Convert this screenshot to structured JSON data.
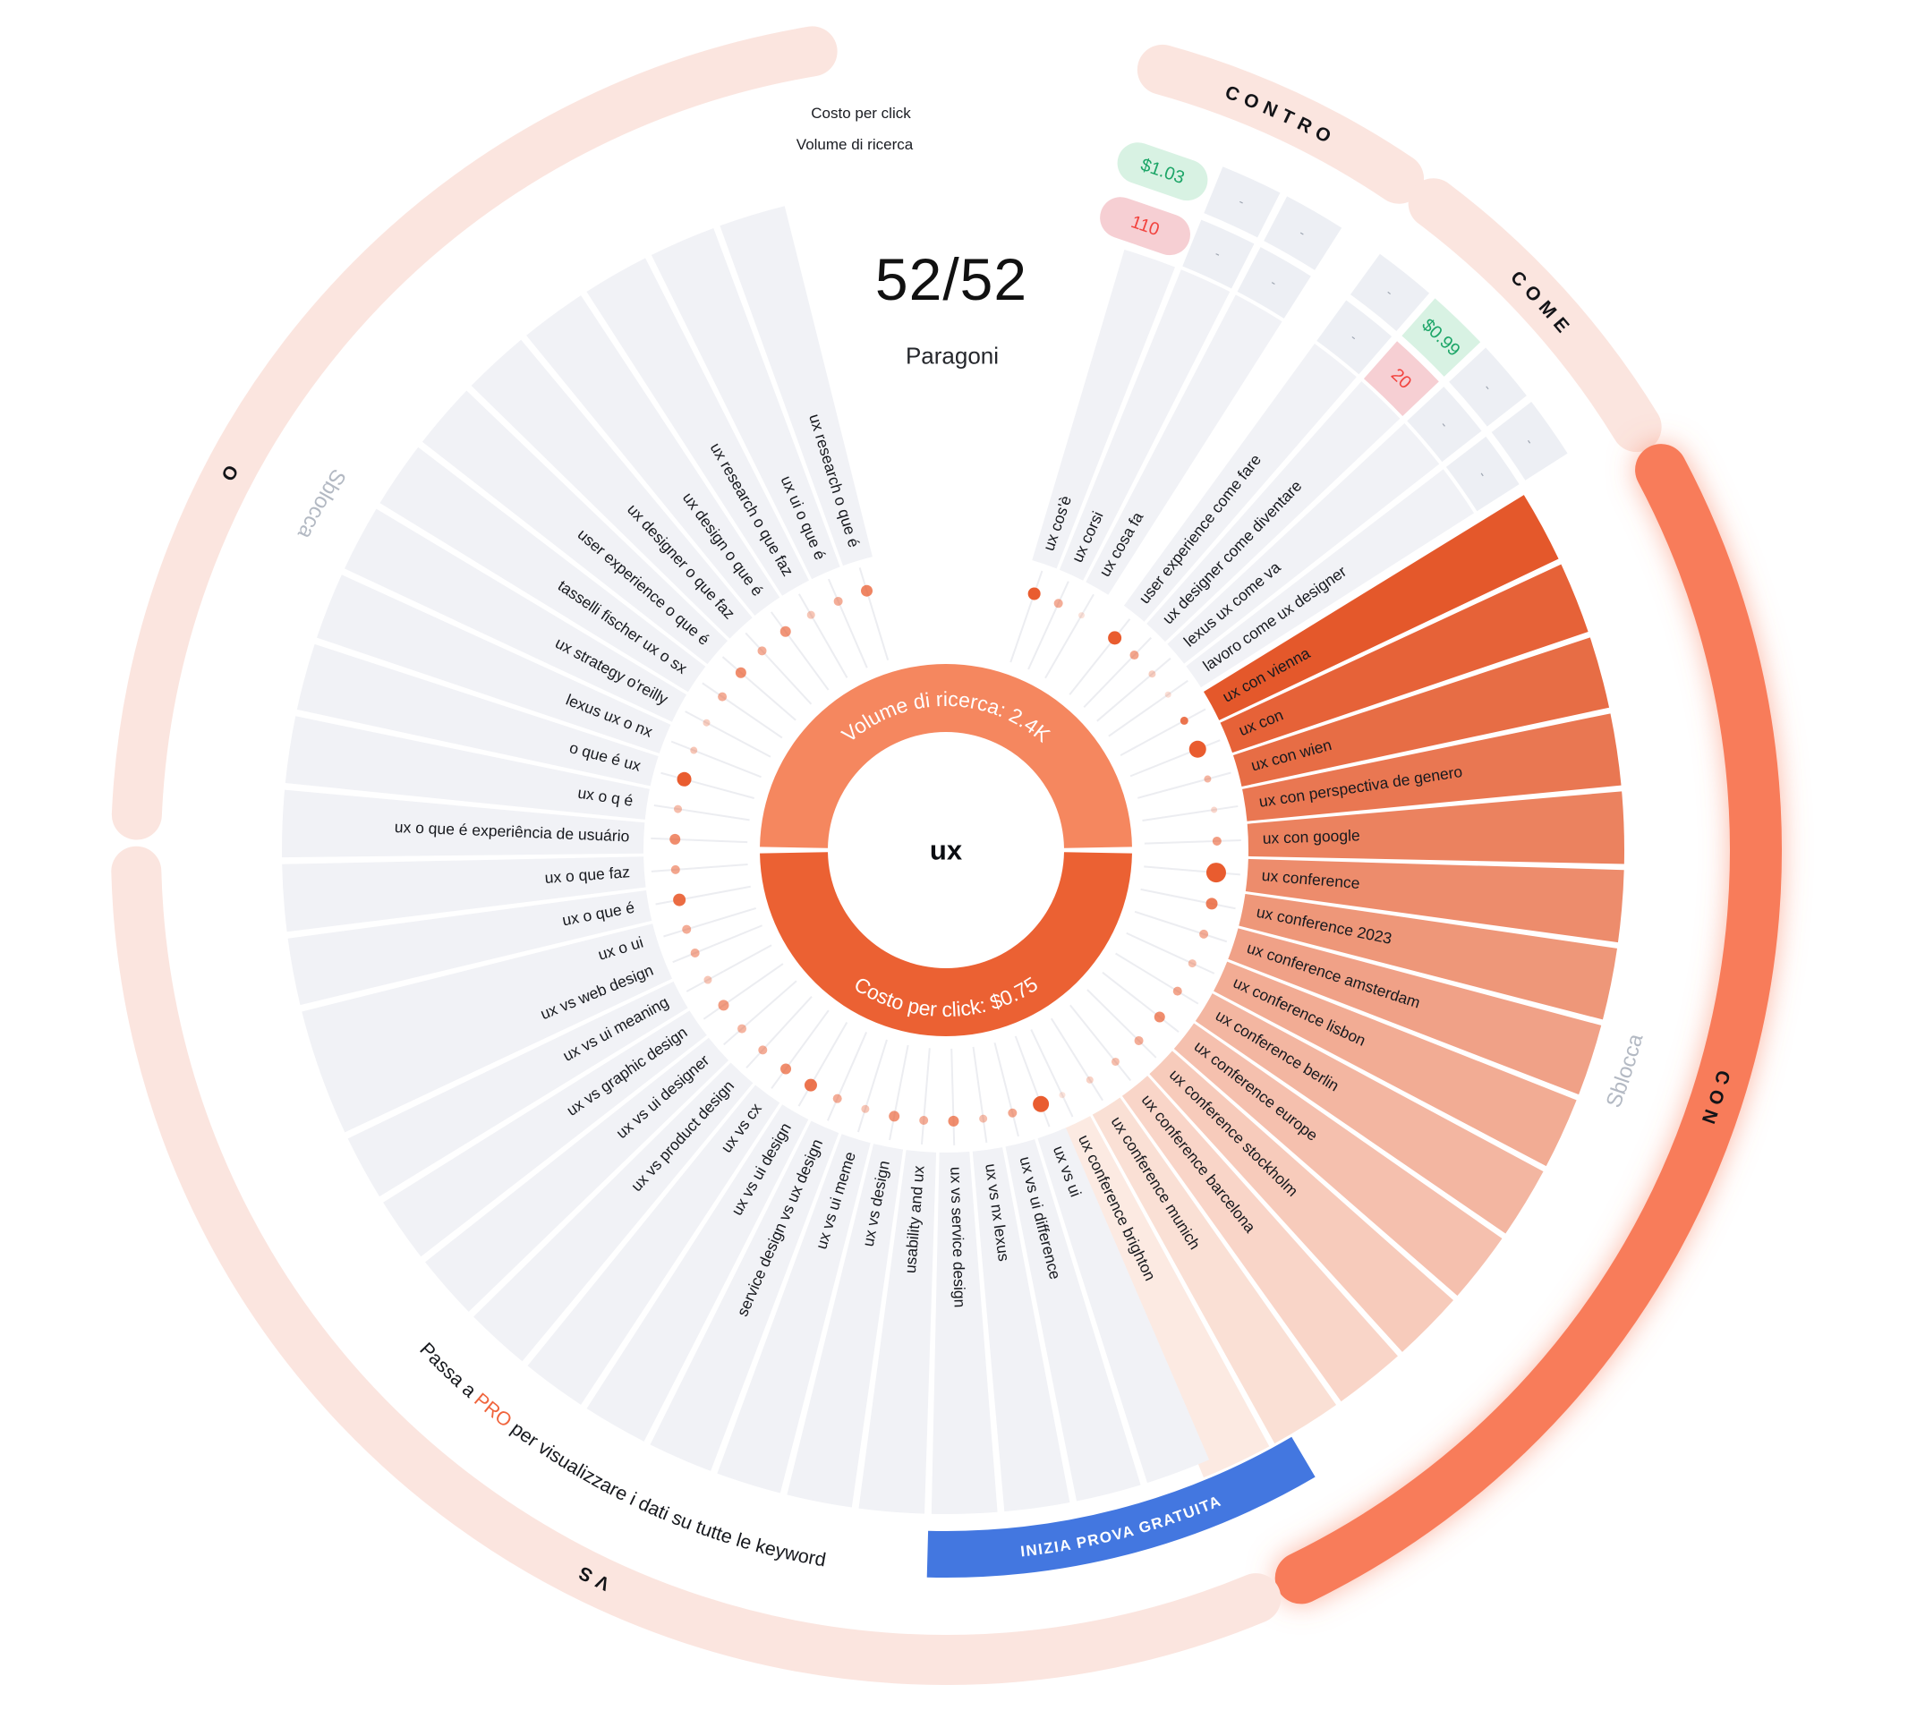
{
  "chart_data": {
    "type": "sunburst",
    "title": "Keyword wheel for 'ux' (Paragoni / comparisons view)",
    "header": {
      "cpc_label": "Costo per click",
      "volume_label": "Volume di ricerca",
      "counter": "52/52",
      "caption": "Paragoni"
    },
    "center": {
      "keyword": "ux",
      "volume_ring_label": "Volume di ricerca: 2.4K",
      "cpc_ring_label": "Costo per click: $0.75"
    },
    "unlock_label": "Sblocca",
    "upsell": {
      "pre": "Passa a ",
      "highlight": "PRO",
      "post": " per visualizzare i dati su tutte le keyword"
    },
    "cta_label": "INIZIA PROVA GRATUITA",
    "sections": [
      {
        "name": "CONTRO",
        "locked": true,
        "keywords": [
          {
            "t": "ux cos'è",
            "cpc": "$1.03",
            "vol": "110",
            "dot": [
              7,
              1
            ]
          },
          {
            "t": "ux corsi",
            "cpc": "-",
            "vol": "-",
            "dot": [
              5,
              0.5
            ]
          },
          {
            "t": "ux cosa fa",
            "cpc": "-",
            "vol": "-",
            "dot": [
              3.5,
              0.18
            ]
          }
        ]
      },
      {
        "name": "COME",
        "locked": true,
        "keywords": [
          {
            "t": "user experience come fare",
            "cpc": "-",
            "vol": "-",
            "dot": [
              7.5,
              1
            ]
          },
          {
            "t": "ux designer come diventare",
            "cpc": "$0.99",
            "vol": "20",
            "dot": [
              5,
              0.55
            ]
          },
          {
            "t": "lexus ux come va",
            "cpc": "-",
            "vol": "-",
            "dot": [
              4,
              0.3
            ]
          },
          {
            "t": "lavoro come ux designer",
            "cpc": "-",
            "vol": "-",
            "dot": [
              3.5,
              0.2
            ]
          }
        ]
      },
      {
        "name": "CON",
        "highlight": true,
        "keywords": [
          {
            "t": "ux con vienna",
            "fill": "#E4582B",
            "dot": [
              4.5,
              0.85
            ]
          },
          {
            "t": "ux con",
            "fill": "#E66238",
            "dot": [
              9.5,
              1
            ]
          },
          {
            "t": "ux con wien",
            "fill": "#E76D45",
            "dot": [
              4,
              0.45
            ]
          },
          {
            "t": "ux con perspectiva de genero",
            "fill": "#E97752",
            "dot": [
              3.5,
              0.25
            ]
          },
          {
            "t": "ux con google",
            "fill": "#EB825F",
            "dot": [
              5,
              0.6
            ]
          },
          {
            "t": "ux conference",
            "fill": "#ED8C6C",
            "dot": [
              11,
              1
            ]
          },
          {
            "t": "ux conference 2023",
            "fill": "#EE9779",
            "dot": [
              6.5,
              0.8
            ]
          },
          {
            "t": "ux conference amsterdam",
            "fill": "#F0A187",
            "dot": [
              5,
              0.5
            ]
          },
          {
            "t": "ux conference lisbon",
            "fill": "#F2AC94",
            "dot": [
              4.5,
              0.4
            ]
          },
          {
            "t": "ux conference berlin",
            "fill": "#F3B6A1",
            "dot": [
              5,
              0.55
            ]
          },
          {
            "t": "ux conference europe",
            "fill": "#F5C0AE",
            "dot": [
              6,
              0.7
            ]
          },
          {
            "t": "ux conference stockholm",
            "fill": "#F7CBBB",
            "dot": [
              5,
              0.5
            ]
          },
          {
            "t": "ux conference barcelona",
            "fill": "#F9D5C8",
            "dot": [
              4.5,
              0.4
            ]
          },
          {
            "t": "ux conference munich",
            "fill": "#FAE0D5",
            "dot": [
              4,
              0.28
            ]
          },
          {
            "t": "ux conference brighton",
            "fill": "#FCEAE2",
            "dot": [
              3.5,
              0.18
            ]
          }
        ]
      },
      {
        "name": "VS",
        "keywords": [
          {
            "t": "ux vs ui",
            "dot": [
              9,
              1
            ]
          },
          {
            "t": "ux vs ui difference",
            "dot": [
              5,
              0.55
            ]
          },
          {
            "t": "ux vs nx lexus",
            "dot": [
              4.5,
              0.4
            ]
          },
          {
            "t": "ux vs service design",
            "dot": [
              6,
              0.7
            ]
          },
          {
            "t": "usability and ux",
            "dot": [
              5,
              0.5
            ]
          },
          {
            "t": "ux vs design",
            "dot": [
              6,
              0.65
            ]
          },
          {
            "t": "ux vs ui meme",
            "dot": [
              4.5,
              0.35
            ]
          },
          {
            "t": "service design vs ux design",
            "dot": [
              5,
              0.5
            ]
          },
          {
            "t": "ux vs ui design",
            "dot": [
              7,
              0.85
            ]
          },
          {
            "t": "ux vs cx",
            "dot": [
              6,
              0.7
            ]
          },
          {
            "t": "ux vs product design",
            "dot": [
              5,
              0.5
            ]
          },
          {
            "t": "ux vs ui designer",
            "dot": [
              5,
              0.45
            ]
          },
          {
            "t": "ux vs graphic design",
            "dot": [
              6,
              0.6
            ]
          },
          {
            "t": "ux vs ui meaning",
            "dot": [
              4.5,
              0.35
            ]
          },
          {
            "t": "ux vs web design",
            "dot": [
              5,
              0.5
            ]
          }
        ]
      },
      {
        "name": "O",
        "keywords": [
          {
            "t": "ux o ui",
            "dot": [
              5,
              0.5
            ]
          },
          {
            "t": "ux o que é",
            "dot": [
              7,
              0.9
            ]
          },
          {
            "t": "ux o que faz",
            "dot": [
              5,
              0.55
            ]
          },
          {
            "t": "ux o que é experiência de usuário",
            "dot": [
              6,
              0.7
            ]
          },
          {
            "t": "ux o q é",
            "dot": [
              4.5,
              0.4
            ]
          },
          {
            "t": "o que é ux",
            "dot": [
              8,
              1
            ]
          },
          {
            "t": "lexus ux o nx",
            "dot": [
              4,
              0.35
            ]
          },
          {
            "t": "ux strategy o'reilly",
            "dot": [
              4,
              0.3
            ]
          },
          {
            "t": "tasselli fischer ux o sx",
            "dot": [
              5,
              0.5
            ]
          },
          {
            "t": "user experience o que é",
            "dot": [
              6,
              0.7
            ]
          },
          {
            "t": "ux designer o que faz",
            "dot": [
              5,
              0.5
            ]
          },
          {
            "t": "ux design o que é",
            "dot": [
              6,
              0.65
            ]
          },
          {
            "t": "ux research o que faz",
            "dot": [
              4.5,
              0.35
            ]
          },
          {
            "t": "ux ui o que é",
            "dot": [
              5,
              0.5
            ]
          },
          {
            "t": "ux research o que é",
            "dot": [
              6.5,
              0.75
            ]
          }
        ]
      }
    ],
    "colors": {
      "donut_top": "#F5875F",
      "donut_bottom": "#EB6133",
      "wedge_grey": "#F1F2F6",
      "cell_grey": "#EDEFF4",
      "dash_text": "#9FA6B2",
      "arc_pink": "#FBE5DF",
      "arc_orange": "#F87B5A",
      "dot": "#E95C2F",
      "spoke": "#ECEDF1",
      "cta_blue": "#4377E0",
      "badge_green_bg": "#D8F2E3",
      "badge_green_text": "#1CA567",
      "badge_red_bg": "#F6CFD3",
      "badge_red_text": "#F2433E",
      "keyword_text": "#17191E",
      "section_label": "#131418",
      "unlock_grey": "#B3B9C3",
      "pro_orange": "#F0643C"
    }
  }
}
